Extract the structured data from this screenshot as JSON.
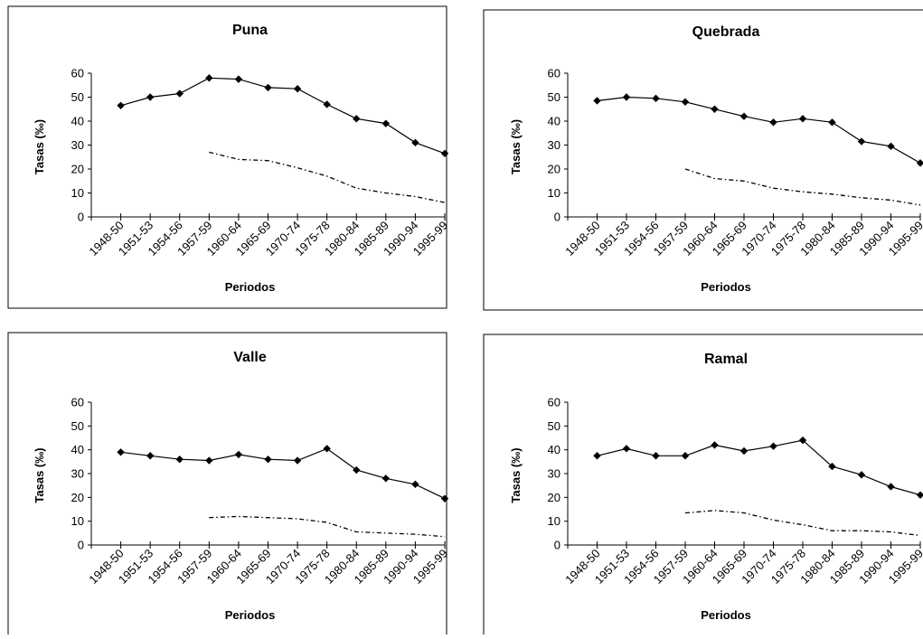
{
  "chart_data": [
    {
      "type": "line",
      "title": "Puna",
      "xlabel": "Periodos",
      "ylabel": "Tasas (‰)",
      "ylim": [
        0,
        60
      ],
      "yticks": [
        0,
        10,
        20,
        30,
        40,
        50,
        60
      ],
      "categories": [
        "1948-50",
        "1951-53",
        "1954-56",
        "1957-59",
        "1960-64",
        "1965-69",
        "1970-74",
        "1975-78",
        "1980-84",
        "1985-89",
        "1990-94",
        "1995-99"
      ],
      "series": [
        {
          "style": "solid-diamond",
          "values": [
            46.5,
            50,
            51.5,
            58,
            57.5,
            54,
            53.5,
            47,
            41,
            39,
            31,
            26.5
          ]
        },
        {
          "style": "dash-dot",
          "values": [
            null,
            null,
            null,
            27,
            24,
            23.5,
            20.5,
            17,
            12,
            10,
            8.5,
            6
          ]
        }
      ],
      "grid": false,
      "legend": "none"
    },
    {
      "type": "line",
      "title": "Quebrada",
      "xlabel": "Periodos",
      "ylabel": "Tasas (‰)",
      "ylim": [
        0,
        60
      ],
      "yticks": [
        0,
        10,
        20,
        30,
        40,
        50,
        60
      ],
      "categories": [
        "1948-50",
        "1951-53",
        "1954-56",
        "1957-59",
        "1960-64",
        "1965-69",
        "1970-74",
        "1975-78",
        "1980-84",
        "1985-89",
        "1990-94",
        "1995-99"
      ],
      "series": [
        {
          "style": "solid-diamond",
          "values": [
            48.5,
            50,
            49.5,
            48,
            45,
            42,
            39.5,
            41,
            39.5,
            31.5,
            29.5,
            22.5
          ]
        },
        {
          "style": "dash-dot",
          "values": [
            null,
            null,
            null,
            20,
            16,
            15,
            12,
            10.5,
            9.5,
            8,
            7,
            5
          ]
        }
      ],
      "grid": false,
      "legend": "none"
    },
    {
      "type": "line",
      "title": "Valle",
      "xlabel": "Periodos",
      "ylabel": "Tasas (‰)",
      "ylim": [
        0,
        60
      ],
      "yticks": [
        0,
        10,
        20,
        30,
        40,
        50,
        60
      ],
      "categories": [
        "1948-50",
        "1951-53",
        "1954-56",
        "1957-59",
        "1960-64",
        "1965-69",
        "1970-74",
        "1975-78",
        "1980-84",
        "1985-89",
        "1990-94",
        "1995-99"
      ],
      "series": [
        {
          "style": "solid-diamond",
          "values": [
            39,
            37.5,
            36,
            35.5,
            38,
            36,
            35.5,
            40.5,
            31.5,
            28,
            25.5,
            19.5
          ]
        },
        {
          "style": "dash-dot",
          "values": [
            null,
            null,
            null,
            11.5,
            12,
            11.5,
            11,
            9.5,
            5.5,
            5,
            4.5,
            3.5
          ]
        }
      ],
      "grid": false,
      "legend": "none"
    },
    {
      "type": "line",
      "title": "Ramal",
      "xlabel": "Periodos",
      "ylabel": "Tasas (‰)",
      "ylim": [
        0,
        60
      ],
      "yticks": [
        0,
        10,
        20,
        30,
        40,
        50,
        60
      ],
      "categories": [
        "1948-50",
        "1951-53",
        "1954-56",
        "1957-59",
        "1960-64",
        "1965-69",
        "1970-74",
        "1975-78",
        "1980-84",
        "1985-89",
        "1990-94",
        "1995-99"
      ],
      "series": [
        {
          "style": "solid-diamond",
          "values": [
            37.5,
            40.5,
            37.5,
            37.5,
            42,
            39.5,
            41.5,
            44,
            33,
            29.5,
            24.5,
            21
          ]
        },
        {
          "style": "dash-dot",
          "values": [
            null,
            null,
            null,
            13.5,
            14.5,
            13.5,
            10.5,
            8.5,
            6,
            6,
            5.5,
            4
          ]
        }
      ],
      "grid": false,
      "legend": "none"
    }
  ]
}
